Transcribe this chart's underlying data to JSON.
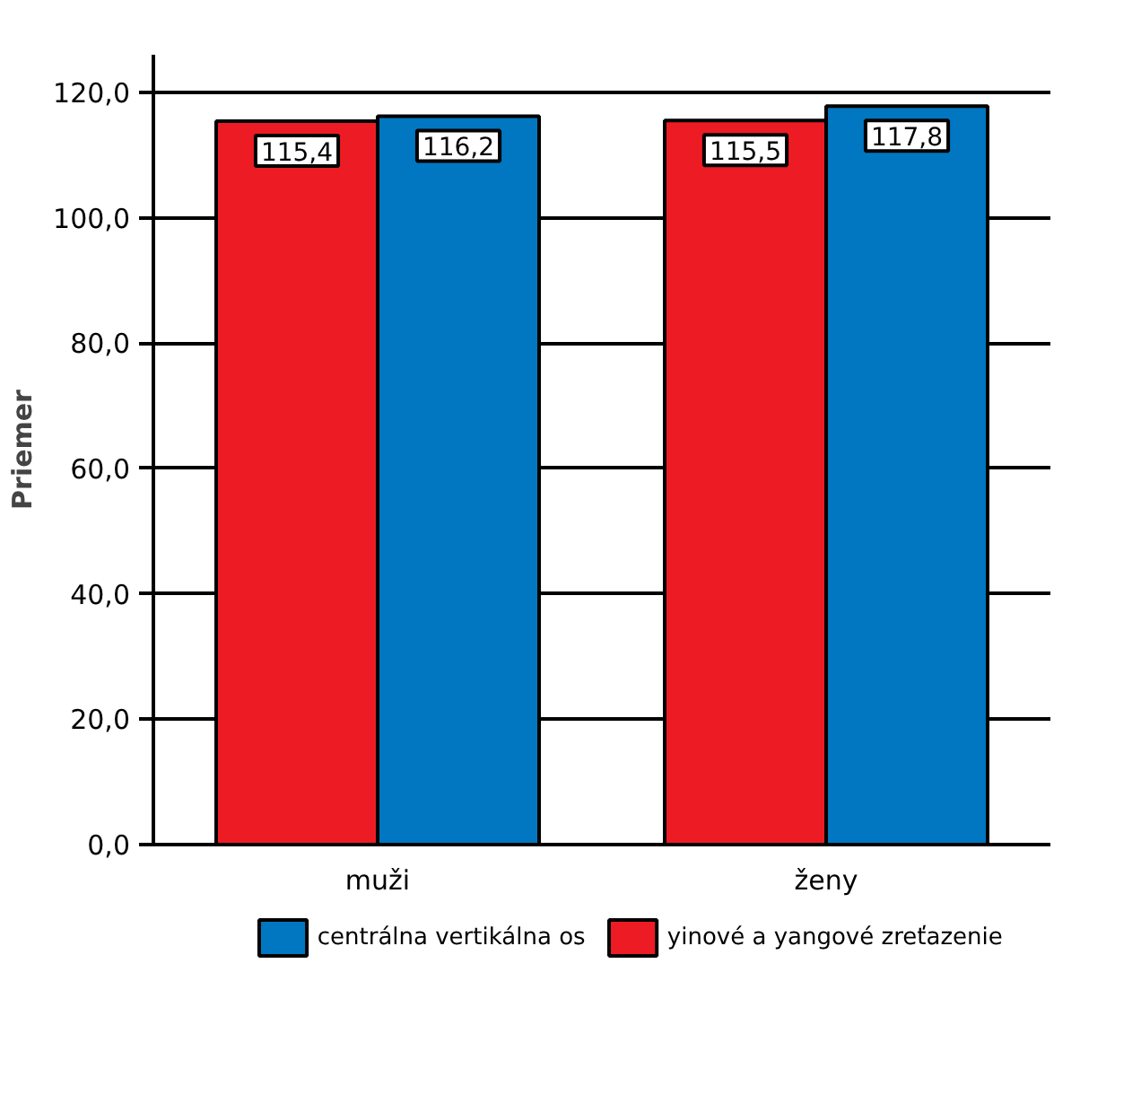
{
  "chart_data": {
    "type": "bar",
    "ylabel": "Priemer",
    "categories": [
      "muži",
      "ženy"
    ],
    "series": [
      {
        "name": "yinové a yangové zreťazenie",
        "color": "#ed1c24",
        "values": [
          115.4,
          115.5
        ],
        "value_labels": [
          "115,4",
          "115,5"
        ]
      },
      {
        "name": "centrálna vertikálna os",
        "color": "#0077c0",
        "values": [
          116.2,
          117.8
        ],
        "value_labels": [
          "116,2",
          "117,8"
        ]
      }
    ],
    "ylim": [
      0,
      126
    ],
    "yticks": [
      {
        "value": 0,
        "label": "0,0"
      },
      {
        "value": 20,
        "label": "20,0"
      },
      {
        "value": 40,
        "label": "40,0"
      },
      {
        "value": 60,
        "label": "60,0"
      },
      {
        "value": 80,
        "label": "80,0"
      },
      {
        "value": 100,
        "label": "100,0"
      },
      {
        "value": 120,
        "label": "120,0"
      }
    ],
    "grid": "y",
    "legend": "bottom"
  }
}
